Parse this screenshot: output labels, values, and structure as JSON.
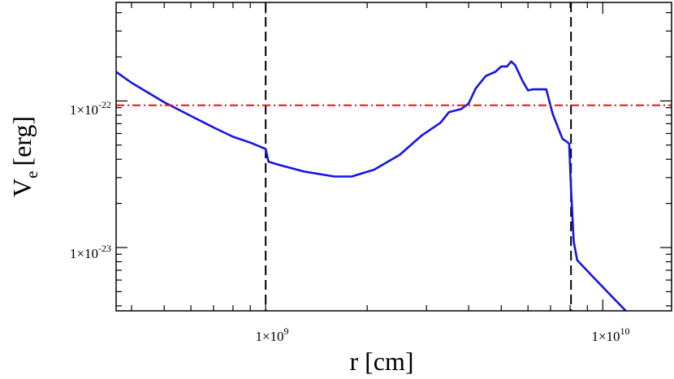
{
  "chart_data": {
    "type": "line",
    "title": "",
    "xlabel": "r [cm]",
    "ylabel_main": "V",
    "ylabel_sub": "e",
    "ylabel_unit": "[erg]",
    "x_scale": "log",
    "y_scale": "log",
    "xlim": [
      360000000.0,
      16000000000.0
    ],
    "ylim": [
      3.7e-24,
      4.7e-22
    ],
    "grid": false,
    "legend": "none",
    "x_tick_labels": [
      {
        "value": 1000000000.0,
        "base": "1×10",
        "exp": "9"
      },
      {
        "value": 10000000000.0,
        "base": "1×10",
        "exp": "10"
      }
    ],
    "y_tick_labels": [
      {
        "value": 1e-22,
        "base": "1×10",
        "exp": "-22"
      },
      {
        "value": 1e-23,
        "base": "1×10",
        "exp": "-23"
      }
    ],
    "series": [
      {
        "color": "#1414e6",
        "style": "solid",
        "x": [
          360000000.0,
          400000000.0,
          500000000.0,
          600000000.0,
          700000000.0,
          800000000.0,
          900000000.0,
          1000000000.0,
          1020000000.0,
          1100000000.0,
          1300000000.0,
          1600000000.0,
          1800000000.0,
          2100000000.0,
          2500000000.0,
          2900000000.0,
          3300000000.0,
          3500000000.0,
          3800000000.0,
          4000000000.0,
          4200000000.0,
          4500000000.0,
          4800000000.0,
          5000000000.0,
          5200000000.0,
          5350000000.0,
          5500000000.0,
          5800000000.0,
          6000000000.0,
          6200000000.0,
          6500000000.0,
          6800000000.0,
          7100000000.0,
          7400000000.0,
          7600000000.0,
          7800000000.0,
          7950000000.0,
          8050000000.0,
          8200000000.0,
          8400000000.0,
          9300000000.0,
          10400000000.0,
          11700000000.0
        ],
        "y": [
          1.58e-22,
          1.33e-22,
          9.8e-23,
          7.9e-23,
          6.6e-23,
          5.7e-23,
          5.2e-23,
          4.7e-23,
          3.85e-23,
          3.65e-23,
          3.3e-23,
          3.05e-23,
          3.05e-23,
          3.4e-23,
          4.3e-23,
          5.8e-23,
          7.1e-23,
          8.4e-23,
          8.8e-23,
          9.6e-23,
          1.22e-22,
          1.48e-22,
          1.58e-22,
          1.72e-22,
          1.72e-22,
          1.86e-22,
          1.75e-22,
          1.35e-22,
          1.18e-22,
          1.2e-22,
          1.2e-22,
          1.2e-22,
          8.2e-23,
          6.4e-23,
          5.5e-23,
          5.3e-23,
          5.1e-23,
          2.5e-23,
          1.1e-23,
          8.2e-24,
          6.4e-24,
          4.9e-24,
          3.7e-24
        ]
      },
      {
        "color": "#e61414",
        "style": "dash-dot",
        "x": [
          360000000.0,
          16000000000.0
        ],
        "y": [
          9.35e-23,
          9.35e-23
        ]
      }
    ],
    "vertical_lines": [
      {
        "x": 1000000000.0,
        "color": "#000000",
        "style": "dashed"
      },
      {
        "x": 8050000000.0,
        "color": "#000000",
        "style": "dashed"
      }
    ]
  }
}
